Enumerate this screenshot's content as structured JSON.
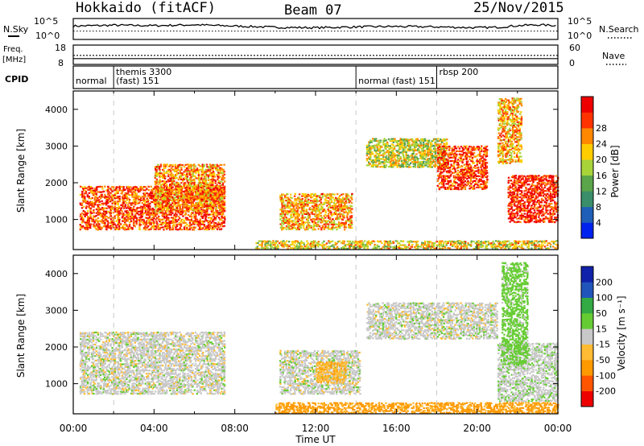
{
  "header": {
    "station": "Hokkaido (fitACF)",
    "beam": "Beam 07",
    "date": "25/Nov/2015"
  },
  "colors": {
    "power_scale": [
      "#0022ee",
      "#1f5fb8",
      "#3a8f6a",
      "#5aa54a",
      "#a8d43a",
      "#ffcc00",
      "#ff8800",
      "#ff3300",
      "#ee0000"
    ],
    "velocity_scale": [
      "#ee0000",
      "#ff5500",
      "#ff9900",
      "#ffbb33",
      "#c8c8c8",
      "#66cc33",
      "#33aa44",
      "#2255bb",
      "#1122aa"
    ],
    "ground": "#c8c8c8"
  },
  "chart_data": [
    {
      "type": "line",
      "title": "N.Sky / N.Search",
      "left_label": "N.Sky",
      "right_label": "N.Search",
      "left_ticks": [
        "10^5",
        "10^0"
      ],
      "right_ticks": [
        "10^5",
        "10^0"
      ],
      "series": [
        {
          "name": "N.Sky",
          "x": [
            0,
            2,
            4,
            6,
            8,
            10,
            12,
            14,
            16,
            18,
            20,
            21,
            22,
            23,
            24
          ],
          "values": [
            3.2,
            3.4,
            3.3,
            3.5,
            3.2,
            2.9,
            2.8,
            3.0,
            3.1,
            3.0,
            2.8,
            2.9,
            3.3,
            3.5,
            3.3
          ]
        },
        {
          "name": "N.Search",
          "x": [
            0,
            24
          ],
          "values": [
            2.0,
            2.0
          ]
        }
      ],
      "ylim": [
        0,
        5
      ]
    },
    {
      "type": "line",
      "title": "Freq. / Nave",
      "left_label": "Freq.",
      "left_unit": "[MHz]",
      "right_label": "Nave",
      "left_ticks": [
        "18",
        "8"
      ],
      "right_ticks": [
        "60",
        "0"
      ],
      "series": [
        {
          "name": "Freq.",
          "x": [
            0,
            24
          ],
          "values": [
            11,
            11
          ]
        },
        {
          "name": "Nave",
          "x": [
            0,
            24
          ],
          "values": [
            28,
            28
          ]
        }
      ],
      "ylim": [
        8,
        18
      ]
    },
    {
      "type": "table",
      "title": "CPID",
      "label": "CPID",
      "modes": [
        {
          "start": 0.0,
          "row": "lower",
          "label": "normal"
        },
        {
          "start": 2.0,
          "row": "upper",
          "label": "themis 3300"
        },
        {
          "start": 2.0,
          "row": "lower",
          "label": "(fast) 151"
        },
        {
          "start": 14.0,
          "row": "lower",
          "label": "normal (fast) 151"
        },
        {
          "start": 18.0,
          "row": "upper",
          "label": "rbsp 200"
        }
      ],
      "boundaries": [
        2.0,
        14.0,
        18.0
      ]
    },
    {
      "type": "heatmap",
      "title": "Power",
      "ylabel": "Slant Range [km]",
      "xlabel": "Time UT",
      "colorbar_label": "Power [dB]",
      "colorbar_ticks": [
        4,
        8,
        12,
        16,
        20,
        24,
        28
      ],
      "xlim": [
        0,
        24
      ],
      "ylim": [
        180,
        4500
      ],
      "yticks": [
        1000,
        2000,
        3000,
        4000
      ],
      "xtick_labels": [
        "00:00",
        "04:00",
        "08:00",
        "12:00",
        "16:00",
        "20:00",
        "00:00"
      ],
      "echo_regions": [
        {
          "t0": 0.3,
          "t1": 7.5,
          "r0": 700,
          "r1": 1900,
          "intensity": 0.85
        },
        {
          "t0": 4.0,
          "t1": 7.5,
          "r0": 1200,
          "r1": 2500,
          "intensity": 0.75
        },
        {
          "t0": 10.2,
          "t1": 13.8,
          "r0": 700,
          "r1": 1700,
          "intensity": 0.7
        },
        {
          "t0": 14.5,
          "t1": 18.5,
          "r0": 2400,
          "r1": 3200,
          "intensity": 0.55
        },
        {
          "t0": 18.0,
          "t1": 20.5,
          "r0": 1800,
          "r1": 3000,
          "intensity": 0.9
        },
        {
          "t0": 21.5,
          "t1": 24.0,
          "r0": 900,
          "r1": 2200,
          "intensity": 0.95
        },
        {
          "t0": 21.0,
          "t1": 22.2,
          "r0": 2500,
          "r1": 4300,
          "intensity": 0.7
        },
        {
          "t0": 9.0,
          "t1": 24.0,
          "r0": 180,
          "r1": 420,
          "intensity": 0.6
        }
      ]
    },
    {
      "type": "heatmap",
      "title": "Velocity",
      "ylabel": "Slant Range [km]",
      "xlabel": "Time UT",
      "colorbar_label": "Velocity [m s⁻¹]",
      "colorbar_ticks": [
        200,
        100,
        50,
        15,
        -15,
        -50,
        -100,
        -200
      ],
      "xlim": [
        0,
        24
      ],
      "ylim": [
        180,
        4500
      ],
      "yticks": [
        1000,
        2000,
        3000,
        4000
      ],
      "xtick_labels": [
        "00:00",
        "04:00",
        "08:00",
        "12:00",
        "16:00",
        "20:00",
        "00:00"
      ],
      "echo_regions": [
        {
          "t0": 0.3,
          "t1": 7.5,
          "r0": 700,
          "r1": 2400,
          "velocity": 0
        },
        {
          "t0": 10.2,
          "t1": 14.2,
          "r0": 700,
          "r1": 1900,
          "velocity": 0
        },
        {
          "t0": 12.0,
          "t1": 13.5,
          "r0": 1000,
          "r1": 1600,
          "velocity": -40
        },
        {
          "t0": 14.5,
          "t1": 21.0,
          "r0": 2200,
          "r1": 3200,
          "velocity": 0
        },
        {
          "t0": 21.0,
          "t1": 24.0,
          "r0": 500,
          "r1": 2100,
          "velocity": 5
        },
        {
          "t0": 21.2,
          "t1": 22.5,
          "r0": 1500,
          "r1": 4300,
          "velocity": 30
        },
        {
          "t0": 10.0,
          "t1": 24.0,
          "r0": 180,
          "r1": 480,
          "velocity": -60
        }
      ]
    }
  ]
}
